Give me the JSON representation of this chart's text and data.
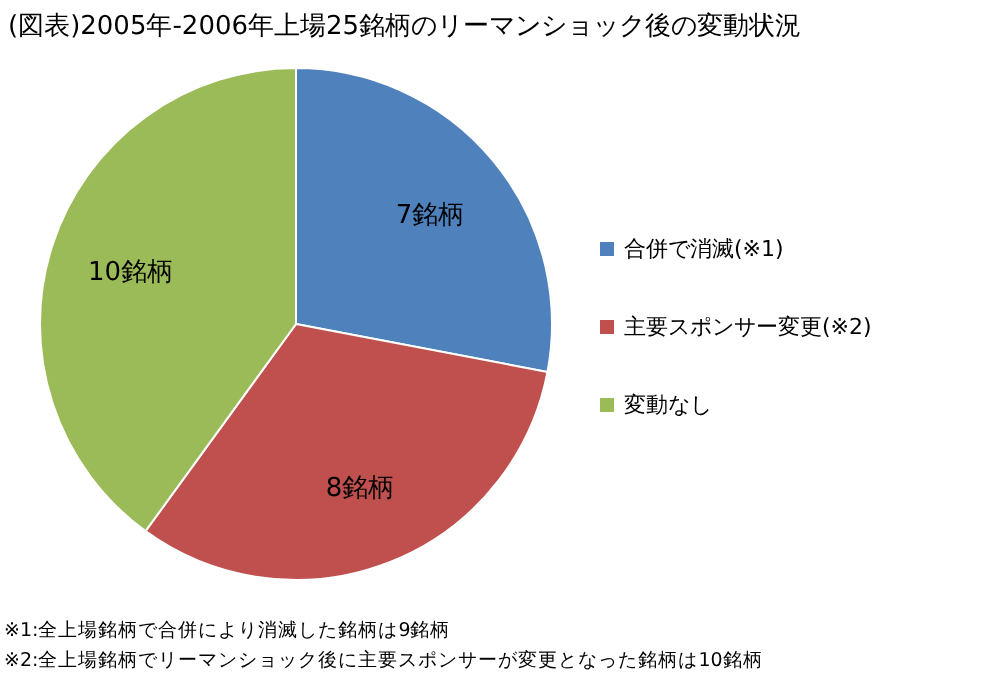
{
  "chart_data": {
    "type": "pie",
    "title": "(図表)2005年-2006年上場25銘柄のリーマンショック後の変動状況",
    "categories": [
      "合併で消滅(※1)",
      "主要スポンサー変更(※2)",
      "変動なし"
    ],
    "values": [
      7,
      8,
      10
    ],
    "colors": [
      "#4f81bd",
      "#c0504d",
      "#9bbb59"
    ],
    "value_labels": [
      "7銘柄",
      "8銘柄",
      "10銘柄"
    ],
    "legend": "right",
    "annotations": [
      "※1:全上場銘柄で合併により消滅した銘柄は9銘柄",
      "※2:全上場銘柄でリーマンショック後に主要スポンサーが変更となった銘柄は10銘柄"
    ]
  }
}
